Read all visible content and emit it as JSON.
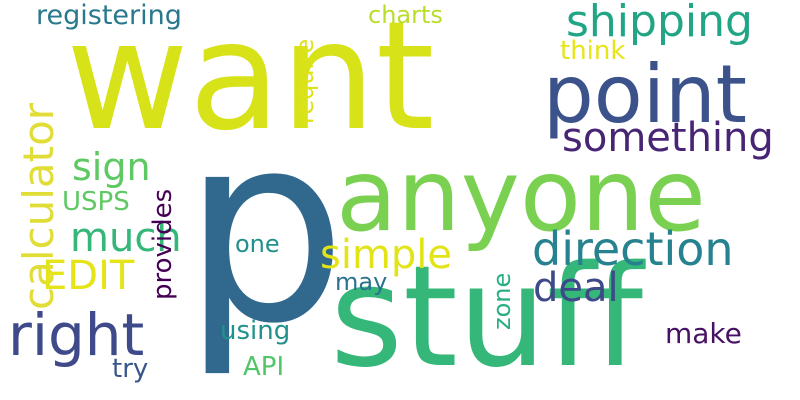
{
  "words": [
    {
      "text": "want",
      "color": "#d8e219"
    },
    {
      "text": "p",
      "color": "#31688e"
    },
    {
      "text": "stuff",
      "color": "#35b779"
    },
    {
      "text": "anyone",
      "color": "#7ad151"
    },
    {
      "text": "point",
      "color": "#3b528b"
    },
    {
      "text": "shipping",
      "color": "#21a585"
    },
    {
      "text": "something",
      "color": "#482475"
    },
    {
      "text": "calculator",
      "color": "#e1dd37"
    },
    {
      "text": "right",
      "color": "#3e4a89"
    },
    {
      "text": "direction",
      "color": "#26828e"
    },
    {
      "text": "simple",
      "color": "#e2e418"
    },
    {
      "text": "sign",
      "color": "#5ec962"
    },
    {
      "text": "much",
      "color": "#35b779"
    },
    {
      "text": "EDIT",
      "color": "#e5e419"
    },
    {
      "text": "deal",
      "color": "#3e4989"
    },
    {
      "text": "registering",
      "color": "#2a788e"
    },
    {
      "text": "charts",
      "color": "#b8de29"
    },
    {
      "text": "think",
      "color": "#e7e419"
    },
    {
      "text": "require",
      "color": "#dde318"
    },
    {
      "text": "USPS",
      "color": "#5ec962"
    },
    {
      "text": "provides",
      "color": "#440154"
    },
    {
      "text": "one",
      "color": "#21918c"
    },
    {
      "text": "may",
      "color": "#2c728e"
    },
    {
      "text": "zone",
      "color": "#29af7f"
    },
    {
      "text": "using",
      "color": "#21918c"
    },
    {
      "text": "API",
      "color": "#52c569"
    },
    {
      "text": "try",
      "color": "#39568c"
    },
    {
      "text": "make",
      "color": "#471164"
    }
  ]
}
